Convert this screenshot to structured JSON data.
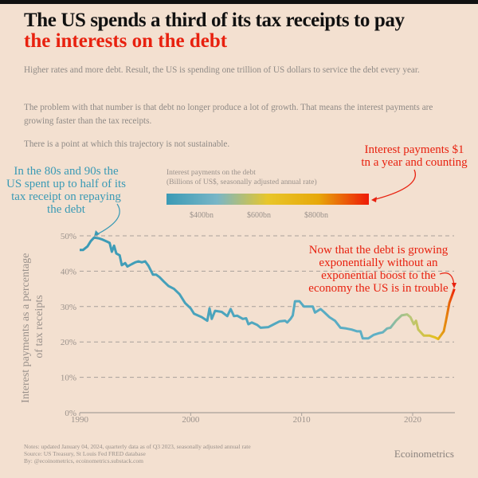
{
  "title_line1": "The US spends a third of its tax receipts to pay",
  "title_line2": "the interests on the debt",
  "paragraphs": [
    "Higher rates and more debt. Result, the US is spending one trillion of US dollars to service the debt every year.",
    "The problem with that number is that debt no longer produce a lot of growth. That means the interest payments are growing faster than the tax receipts.",
    "There is a point at which this trajectory is not sustainable."
  ],
  "annotations": {
    "left": "In the 80s and 90s the US spent up to half of its tax receipt on repaying the debt",
    "top_right": "Interest payments $1 tn a year and counting",
    "right": "Now that the debt is growing exponentially without an exponential boost to the economy the US is in trouble"
  },
  "colors": {
    "accent_red": "#e8210f",
    "annotation_blue": "#3a9ab5",
    "low": "#3a9ab5",
    "mid": "#e8c62a",
    "high": "#ee1a08"
  },
  "legend": {
    "title": "Interest payments on the debt",
    "subtitle": "(Billions of US$, seasonally adjusted annual rate)",
    "ticks": [
      "$400bn",
      "$600bn",
      "$800bn"
    ]
  },
  "notes": [
    "Notes: updated January 04, 2024, quarterly data as of Q3 2023, seasonally adjusted annual rate",
    "Source: US Treasury, St Louis Fed FRED database",
    "By: @ecoinometrics, ecoinometrics.substack.com"
  ],
  "brand": "Ecoinometrics",
  "chart_data": {
    "type": "line",
    "title": "",
    "xlabel": "",
    "ylabel": "Interest payments as a percentage of tax receipts",
    "xlim": [
      1990,
      2023.75
    ],
    "ylim": [
      0,
      50
    ],
    "xticks": [
      "1990",
      "2000",
      "2010",
      "2020"
    ],
    "yticks": [
      "0%",
      "10%",
      "20%",
      "30%",
      "40%",
      "50%"
    ],
    "grid": "horizontal dashed",
    "x": [
      1990.0,
      1990.3,
      1990.7,
      1991.0,
      1991.3,
      1991.7,
      1992.0,
      1992.5,
      1992.7,
      1992.9,
      1993.1,
      1993.3,
      1993.6,
      1993.8,
      1994.1,
      1994.3,
      1994.7,
      1995.0,
      1995.3,
      1995.6,
      1995.9,
      1996.2,
      1996.6,
      1996.9,
      1997.2,
      1997.6,
      1998.0,
      1998.5,
      1999.0,
      1999.5,
      2000.0,
      2000.3,
      2001.0,
      2001.5,
      2001.7,
      2001.9,
      2002.2,
      2002.8,
      2003.3,
      2003.6,
      2003.9,
      2004.2,
      2004.7,
      2005.0,
      2005.2,
      2005.5,
      2006.0,
      2006.3,
      2007.0,
      2007.5,
      2008.0,
      2008.5,
      2008.7,
      2009.0,
      2009.2,
      2009.4,
      2009.8,
      2010.2,
      2010.5,
      2011.0,
      2011.2,
      2011.7,
      2012.0,
      2012.5,
      2013.0,
      2013.5,
      2014.0,
      2014.5,
      2015.0,
      2015.3,
      2015.5,
      2016.0,
      2016.5,
      2017.0,
      2017.3,
      2017.7,
      2018.0,
      2018.5,
      2019.0,
      2019.5,
      2019.8,
      2020.1,
      2020.3,
      2020.5,
      2021.0,
      2021.5,
      2022.0,
      2022.3,
      2022.8,
      2023.0,
      2023.3,
      2023.75
    ],
    "values": [
      46,
      46,
      47,
      48.5,
      49.5,
      49.3,
      49,
      48.3,
      48,
      45.5,
      47.2,
      45,
      44.5,
      41.7,
      42.3,
      41.3,
      42,
      42.5,
      42.8,
      42.5,
      42.8,
      41.5,
      39,
      39,
      38.3,
      37,
      35.8,
      35,
      33.5,
      31,
      29.5,
      28,
      27,
      26,
      29.5,
      26.5,
      28.8,
      28.5,
      27.3,
      29.3,
      27.3,
      27.4,
      26.5,
      26.7,
      25,
      25.5,
      24.8,
      24,
      24.2,
      25,
      25.8,
      26,
      25.5,
      26.5,
      27.5,
      31.5,
      31.5,
      30,
      30,
      30,
      28.3,
      29.3,
      28.5,
      27,
      26,
      24,
      23.8,
      23.5,
      23,
      23,
      21,
      21,
      22,
      22.5,
      22.7,
      23.8,
      24,
      26,
      27.5,
      27.8,
      27,
      25,
      26,
      23.5,
      21.8,
      21.8,
      21.3,
      20.8,
      23,
      26,
      31,
      35
    ]
  }
}
